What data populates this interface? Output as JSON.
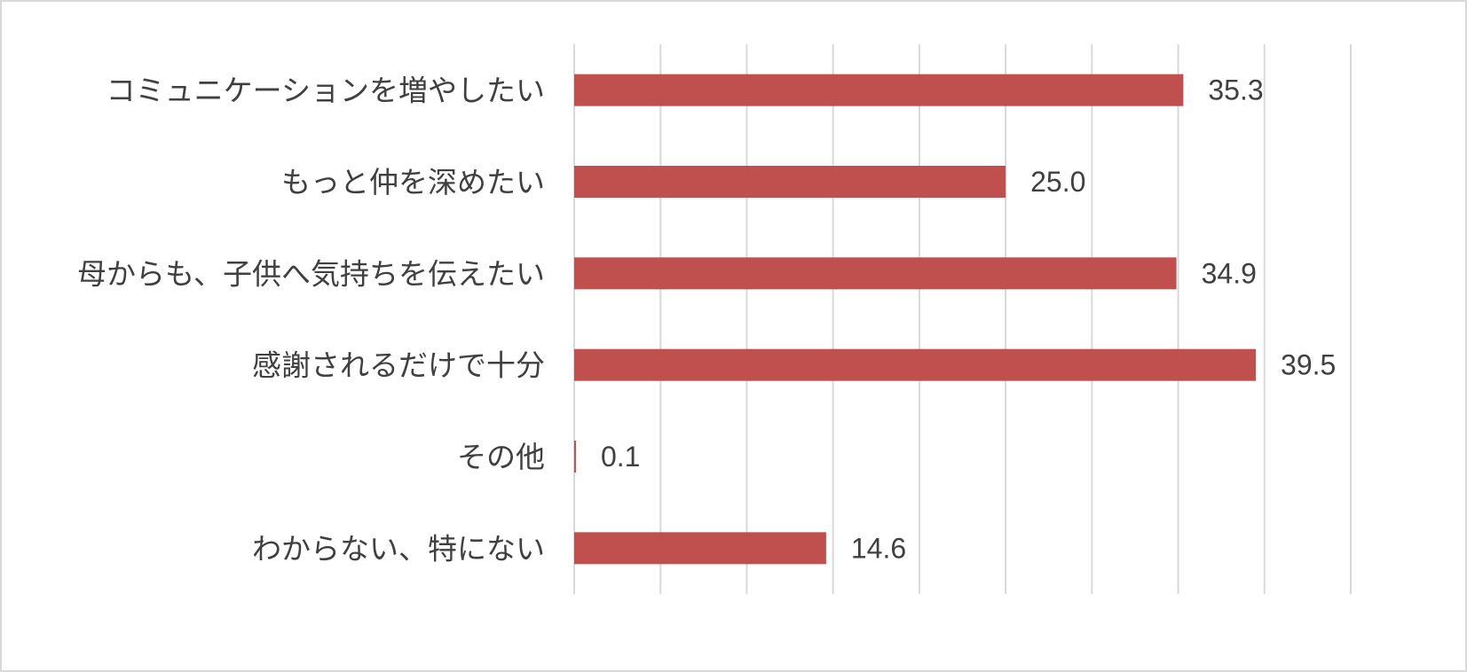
{
  "chart_data": {
    "type": "bar",
    "orientation": "horizontal",
    "categories": [
      "コミュニケーションを増やしたい",
      "もっと仲を深めたい",
      "母からも、子供へ気持ちを伝えたい",
      "感謝されるだけで十分",
      "その他",
      "わからない、特にない"
    ],
    "values": [
      35.3,
      25.0,
      34.9,
      39.5,
      0.1,
      14.6
    ],
    "value_labels": [
      "35.3",
      "25.0",
      "34.9",
      "39.5",
      "0.1",
      "14.6"
    ],
    "xlim": [
      0,
      45
    ],
    "grid": true,
    "legend": "none",
    "colors": {
      "bar": "#c0504d",
      "grid": "#d9d9d9",
      "text": "#404040"
    }
  }
}
